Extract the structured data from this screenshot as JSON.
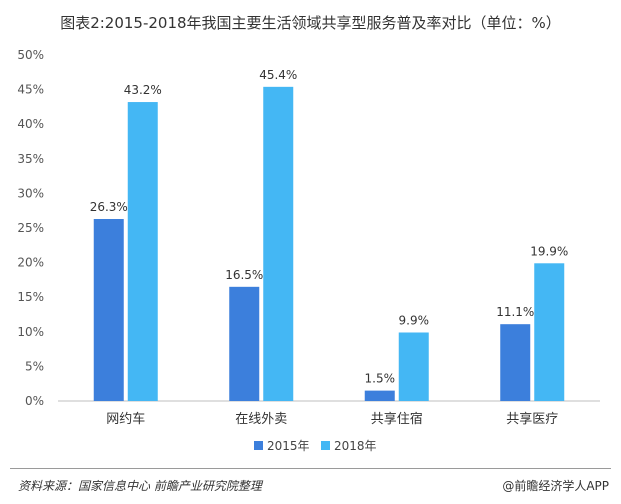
{
  "title": "图表2:2015-2018年我国主要生活领域共享型服务普及率对比（单位：%）",
  "chart_data": {
    "type": "bar",
    "categories": [
      "网约车",
      "在线外卖",
      "共享住宿",
      "共享医疗"
    ],
    "series": [
      {
        "name": "2015年",
        "values": [
          26.3,
          16.5,
          1.5,
          11.1
        ],
        "color": "#3c7fdc"
      },
      {
        "name": "2018年",
        "values": [
          43.2,
          45.4,
          9.9,
          19.9
        ],
        "color": "#44b7f4"
      }
    ],
    "value_labels": [
      [
        "26.3%",
        "16.5%",
        "1.5%",
        "11.1%"
      ],
      [
        "43.2%",
        "45.4%",
        "9.9%",
        "19.9%"
      ]
    ],
    "ylim": [
      0,
      50
    ],
    "yticks": [
      0,
      5,
      10,
      15,
      20,
      25,
      30,
      35,
      40,
      45,
      50
    ],
    "ytick_labels": [
      "0%",
      "5%",
      "10%",
      "15%",
      "20%",
      "25%",
      "30%",
      "35%",
      "40%",
      "45%",
      "50%"
    ],
    "legend_position": "bottom-center",
    "grid": false
  },
  "footer": {
    "source": "资料来源：国家信息中心 前瞻产业研究院整理",
    "brand": "@前瞻经济学人APP"
  }
}
